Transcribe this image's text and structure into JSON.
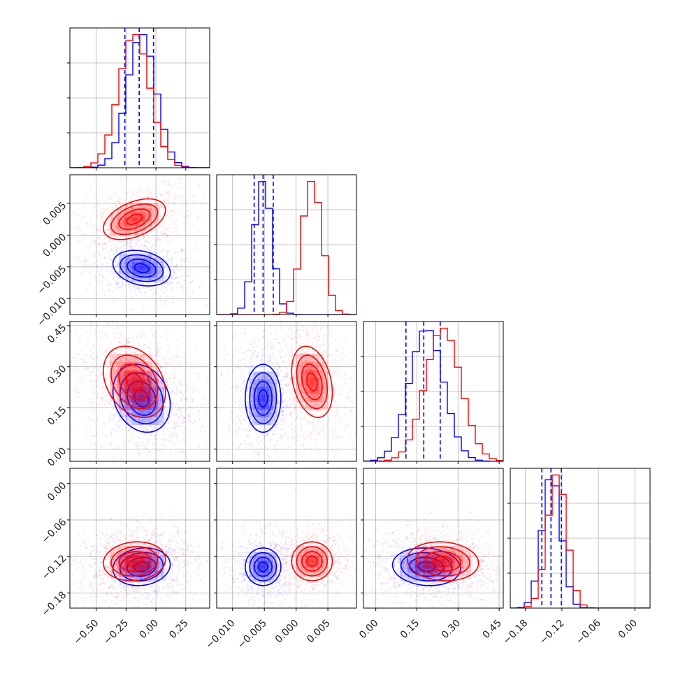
{
  "chart_data": {
    "type": "corner",
    "parameters": [
      {
        "range": [
          -0.72,
          0.45
        ],
        "ticks": [
          {
            "v": -0.5,
            "label": "−0.50"
          },
          {
            "v": -0.25,
            "label": "−0.25"
          },
          {
            "v": 0.0,
            "label": "0.00"
          },
          {
            "v": 0.25,
            "label": "0.25"
          }
        ]
      },
      {
        "range": [
          -0.0125,
          0.0095
        ],
        "ticks": [
          {
            "v": -0.01,
            "label": "−0.010"
          },
          {
            "v": -0.005,
            "label": "−0.005"
          },
          {
            "v": 0.0,
            "label": "0.000"
          },
          {
            "v": 0.005,
            "label": "0.005"
          }
        ]
      },
      {
        "range": [
          -0.045,
          0.465
        ],
        "ticks": [
          {
            "v": 0.0,
            "label": "0.00"
          },
          {
            "v": 0.15,
            "label": "0.15"
          },
          {
            "v": 0.3,
            "label": "0.30"
          },
          {
            "v": 0.45,
            "label": "0.45"
          }
        ]
      },
      {
        "range": [
          -0.205,
          0.025
        ],
        "ticks": [
          {
            "v": -0.18,
            "label": "−0.18"
          },
          {
            "v": -0.12,
            "label": "−0.12"
          },
          {
            "v": -0.06,
            "label": "−0.06"
          },
          {
            "v": 0.0,
            "label": "0.00"
          }
        ]
      }
    ],
    "series": [
      {
        "color": "#0000ff",
        "mean": [
          -0.12,
          -0.0052,
          0.185,
          -0.137
        ],
        "sd": [
          0.12,
          0.0014,
          0.062,
          0.0155
        ],
        "corr": {
          "0-1": -0.25,
          "0-2": -0.2,
          "0-3": 0.12,
          "1-2": 0.0,
          "1-3": 0.0,
          "2-3": -0.1
        },
        "quantiles": [
          [
            -0.26,
            -0.14,
            -0.02
          ],
          [
            -0.0066,
            -0.0052,
            -0.0036
          ],
          [
            0.11,
            0.175,
            0.235
          ],
          [
            -0.153,
            -0.138,
            -0.121
          ]
        ]
      },
      {
        "color": "#ff0000",
        "mean": [
          -0.18,
          0.0025,
          0.245,
          -0.128
        ],
        "sd": [
          0.13,
          0.0016,
          0.065,
          0.016
        ],
        "corr": {
          "0-1": 0.45,
          "0-2": -0.3,
          "0-3": 0.1,
          "1-2": -0.3,
          "1-3": 0.0,
          "2-3": -0.1
        }
      }
    ],
    "contour_levels": [
      0.5,
      1.0,
      1.5,
      2.0
    ],
    "grid": true,
    "legend": "none"
  }
}
